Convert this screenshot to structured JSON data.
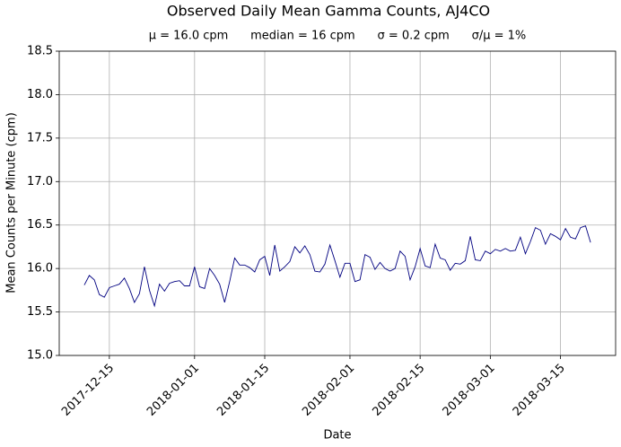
{
  "chart_data": {
    "type": "line",
    "title": "Observed Daily Mean Gamma Counts, AJ4CO",
    "subtitle": "μ = 16.0 cpm      median = 16 cpm      σ = 0.2 cpm      σ/μ = 1%",
    "xlabel": "Date",
    "ylabel": "Mean Counts per Minute (cpm)",
    "x": [
      "2017-12-10",
      "2017-12-11",
      "2017-12-12",
      "2017-12-13",
      "2017-12-14",
      "2017-12-15",
      "2017-12-16",
      "2017-12-17",
      "2017-12-18",
      "2017-12-19",
      "2017-12-20",
      "2017-12-21",
      "2017-12-22",
      "2017-12-23",
      "2017-12-24",
      "2017-12-25",
      "2017-12-26",
      "2017-12-27",
      "2017-12-28",
      "2017-12-29",
      "2017-12-30",
      "2017-12-31",
      "2018-01-01",
      "2018-01-02",
      "2018-01-03",
      "2018-01-04",
      "2018-01-05",
      "2018-01-06",
      "2018-01-07",
      "2018-01-08",
      "2018-01-09",
      "2018-01-10",
      "2018-01-11",
      "2018-01-12",
      "2018-01-13",
      "2018-01-14",
      "2018-01-15",
      "2018-01-16",
      "2018-01-17",
      "2018-01-18",
      "2018-01-19",
      "2018-01-20",
      "2018-01-21",
      "2018-01-22",
      "2018-01-23",
      "2018-01-24",
      "2018-01-25",
      "2018-01-26",
      "2018-01-27",
      "2018-01-28",
      "2018-01-29",
      "2018-01-30",
      "2018-01-31",
      "2018-02-01",
      "2018-02-02",
      "2018-02-03",
      "2018-02-04",
      "2018-02-05",
      "2018-02-06",
      "2018-02-07",
      "2018-02-08",
      "2018-02-09",
      "2018-02-10",
      "2018-02-11",
      "2018-02-12",
      "2018-02-13",
      "2018-02-14",
      "2018-02-15",
      "2018-02-16",
      "2018-02-17",
      "2018-02-18",
      "2018-02-19",
      "2018-02-20",
      "2018-02-21",
      "2018-02-22",
      "2018-02-23",
      "2018-02-24",
      "2018-02-25",
      "2018-02-26",
      "2018-02-27",
      "2018-02-28",
      "2018-03-01",
      "2018-03-02",
      "2018-03-03",
      "2018-03-04",
      "2018-03-05",
      "2018-03-06",
      "2018-03-07",
      "2018-03-08",
      "2018-03-09",
      "2018-03-10",
      "2018-03-11",
      "2018-03-12",
      "2018-03-13",
      "2018-03-14",
      "2018-03-15",
      "2018-03-16",
      "2018-03-17",
      "2018-03-18",
      "2018-03-19",
      "2018-03-20",
      "2018-03-21"
    ],
    "series": [
      {
        "color": "#000080",
        "values": [
          15.81,
          15.92,
          15.87,
          15.7,
          15.67,
          15.78,
          15.8,
          15.82,
          15.89,
          15.77,
          15.61,
          15.71,
          16.02,
          15.75,
          15.57,
          15.82,
          15.74,
          15.83,
          15.85,
          15.86,
          15.8,
          15.8,
          16.02,
          15.79,
          15.77,
          16.0,
          15.92,
          15.82,
          15.61,
          15.85,
          16.12,
          16.04,
          16.04,
          16.01,
          15.96,
          16.1,
          16.14,
          15.92,
          16.27,
          15.97,
          16.02,
          16.08,
          16.25,
          16.18,
          16.26,
          16.16,
          15.97,
          15.96,
          16.05,
          16.27,
          16.09,
          15.9,
          16.06,
          16.06,
          15.85,
          15.87,
          16.16,
          16.13,
          15.99,
          16.07,
          16.0,
          15.97,
          16.0,
          16.2,
          16.14,
          15.87,
          16.02,
          16.23,
          16.03,
          16.01,
          16.28,
          16.12,
          16.1,
          15.98,
          16.06,
          16.05,
          16.09,
          16.37,
          16.1,
          16.09,
          16.2,
          16.17,
          16.22,
          16.2,
          16.23,
          16.2,
          16.21,
          16.36,
          16.17,
          16.31,
          16.47,
          16.44,
          16.28,
          16.4,
          16.37,
          16.33,
          16.46,
          16.36,
          16.34,
          16.47,
          16.49,
          16.3
        ]
      }
    ],
    "xlim": [
      "2017-12-05",
      "2018-03-26"
    ],
    "xticks": [
      "2017-12-15",
      "2018-01-01",
      "2018-01-15",
      "2018-02-01",
      "2018-02-15",
      "2018-03-01",
      "2018-03-15"
    ],
    "ylim": [
      15.0,
      18.5
    ],
    "yticks": [
      {
        "value": 15.0,
        "label": "15.0"
      },
      {
        "value": 15.5,
        "label": "15.5"
      },
      {
        "value": 16.0,
        "label": "16.0"
      },
      {
        "value": 16.5,
        "label": "16.5"
      },
      {
        "value": 17.0,
        "label": "17.0"
      },
      {
        "value": 17.5,
        "label": "17.5"
      },
      {
        "value": 18.0,
        "label": "18.0"
      },
      {
        "value": 18.5,
        "label": "18.5"
      }
    ],
    "grid": true
  }
}
